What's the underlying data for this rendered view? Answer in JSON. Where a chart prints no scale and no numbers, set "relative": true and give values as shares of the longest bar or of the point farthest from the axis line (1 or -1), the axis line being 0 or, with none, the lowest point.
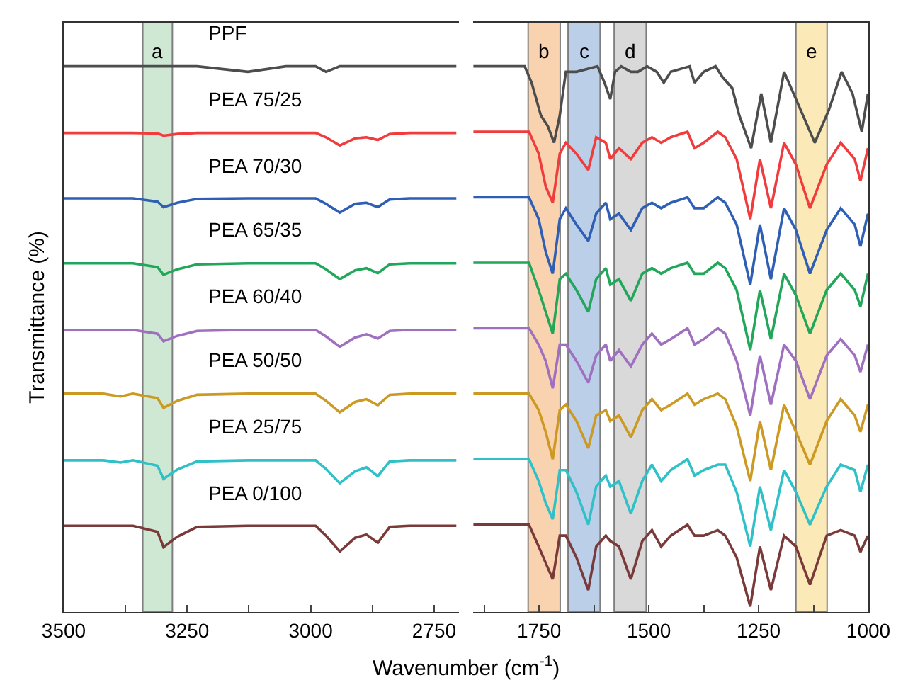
{
  "chart_data": [
    {
      "type": "line",
      "relative": true,
      "xlabel": "Wavenumber (cm$^{-1}$)",
      "ylabel": "Transmittance (%)",
      "tick_labels": "x",
      "legend": false,
      "grid": false,
      "xlim": [
        3500,
        2700
      ],
      "xticks": [
        3500,
        {
          "value": 3375,
          "label": null
        },
        3250,
        {
          "value": 3125,
          "label": null
        },
        3000,
        {
          "value": 2875,
          "label": null
        },
        2750
      ],
      "x": [
        3500,
        3420,
        3385,
        3360,
        3310,
        3298,
        3270,
        3230,
        3127,
        3050,
        2990,
        2969,
        2941,
        2910,
        2887,
        2864,
        2840,
        2800,
        2705
      ],
      "bands": [
        {
          "axis": "x",
          "from": 3340,
          "to": 3280,
          "label": "a",
          "color": "#cfe8d3"
        }
      ],
      "series": [
        {
          "name": "PPF",
          "color": "#4d4d4d",
          "values": [
            1.0,
            1.0,
            1.0,
            1.0,
            1.0,
            1.0,
            1.0,
            1.0,
            0.99,
            1.0,
            1.0,
            0.99,
            1.0,
            1.0,
            1.0,
            1.0,
            1.0,
            1.0,
            1.0
          ]
        },
        {
          "name": "PEA 75/25",
          "color": "#f03c3c",
          "values": [
            0.878,
            0.878,
            0.878,
            0.878,
            0.877,
            0.873,
            0.876,
            0.878,
            0.878,
            0.878,
            0.878,
            0.87,
            0.855,
            0.868,
            0.87,
            0.865,
            0.876,
            0.878,
            0.878
          ]
        },
        {
          "name": "PEA 70/30",
          "color": "#2e5fb5",
          "values": [
            0.758,
            0.758,
            0.758,
            0.758,
            0.752,
            0.742,
            0.75,
            0.757,
            0.758,
            0.758,
            0.758,
            0.748,
            0.732,
            0.748,
            0.75,
            0.742,
            0.756,
            0.758,
            0.758
          ]
        },
        {
          "name": "PEA 65/35",
          "color": "#22a65a",
          "values": [
            0.639,
            0.639,
            0.639,
            0.639,
            0.632,
            0.618,
            0.628,
            0.637,
            0.639,
            0.639,
            0.639,
            0.628,
            0.61,
            0.626,
            0.63,
            0.621,
            0.637,
            0.639,
            0.639
          ]
        },
        {
          "name": "PEA 60/40",
          "color": "#a070c0",
          "values": [
            0.517,
            0.517,
            0.517,
            0.517,
            0.51,
            0.496,
            0.506,
            0.515,
            0.517,
            0.517,
            0.517,
            0.505,
            0.486,
            0.503,
            0.509,
            0.501,
            0.515,
            0.517,
            0.517
          ]
        },
        {
          "name": "PEA 50/50",
          "color": "#cc9a22",
          "values": [
            0.4,
            0.4,
            0.395,
            0.4,
            0.392,
            0.374,
            0.387,
            0.398,
            0.4,
            0.4,
            0.4,
            0.387,
            0.366,
            0.385,
            0.39,
            0.379,
            0.398,
            0.4,
            0.4
          ]
        },
        {
          "name": "PEA 25/75",
          "color": "#30c0c8",
          "values": [
            0.278,
            0.278,
            0.274,
            0.278,
            0.268,
            0.244,
            0.261,
            0.276,
            0.278,
            0.278,
            0.278,
            0.262,
            0.236,
            0.258,
            0.265,
            0.249,
            0.276,
            0.278,
            0.278
          ]
        },
        {
          "name": "PEA 0/100",
          "color": "#7a3a3a",
          "values": [
            0.158,
            0.158,
            0.158,
            0.158,
            0.147,
            0.119,
            0.138,
            0.156,
            0.158,
            0.158,
            0.158,
            0.14,
            0.111,
            0.136,
            0.142,
            0.127,
            0.156,
            0.158,
            0.158
          ]
        }
      ]
    },
    {
      "type": "line",
      "relative": true,
      "tick_labels": "x",
      "legend": false,
      "grid": false,
      "xlim": [
        1900,
        1000
      ],
      "xticks": [
        {
          "value": 1875,
          "label": null
        },
        1750,
        {
          "value": 1625,
          "label": null
        },
        1500,
        {
          "value": 1375,
          "label": null
        },
        1250,
        {
          "value": 1125,
          "label": null
        },
        1000
      ],
      "x": [
        1900,
        1773,
        1751,
        1735,
        1719,
        1703,
        1689,
        1665,
        1638,
        1620,
        1598,
        1588,
        1568,
        1541,
        1515,
        1493,
        1472,
        1450,
        1412,
        1396,
        1375,
        1343,
        1326,
        1300,
        1269,
        1247,
        1222,
        1192,
        1165,
        1133,
        1095,
        1063,
        1031,
        1018,
        1001
      ],
      "bands": [
        {
          "axis": "x",
          "from": 1775,
          "to": 1702,
          "label": "b",
          "color": "#f9d2b0"
        },
        {
          "axis": "x",
          "from": 1684,
          "to": 1611,
          "label": "c",
          "color": "#bccfe8"
        },
        {
          "axis": "x",
          "from": 1579,
          "to": 1506,
          "label": "d",
          "color": "#d9d9d9"
        },
        {
          "axis": "x",
          "from": 1165,
          "to": 1094,
          "label": "e",
          "color": "#fbeab8"
        }
      ],
      "series": [
        {
          "color": "#4d4d4d",
          "x": [
            1900,
            1783,
            1767,
            1746,
            1730,
            1716,
            1703,
            1689,
            1665,
            1617,
            1601,
            1588,
            1577,
            1563,
            1541,
            1525,
            1504,
            1482,
            1466,
            1450,
            1407,
            1396,
            1375,
            1348,
            1332,
            1310,
            1294,
            1267,
            1244,
            1222,
            1192,
            1165,
            1122,
            1090,
            1061,
            1036,
            1015,
            1001
          ],
          "values": [
            1.0,
            1.0,
            0.97,
            0.91,
            0.89,
            0.86,
            0.91,
            0.99,
            0.99,
            1.0,
            0.97,
            0.94,
            0.99,
            1.0,
            0.99,
            0.99,
            1.0,
            0.99,
            0.97,
            0.99,
            1.0,
            0.97,
            0.99,
            1.0,
            0.98,
            0.96,
            0.91,
            0.85,
            0.95,
            0.86,
            0.99,
            0.94,
            0.86,
            0.92,
            0.99,
            0.95,
            0.88,
            0.95
          ]
        },
        {
          "color": "#f03c3c",
          "values": [
            0.88,
            0.88,
            0.84,
            0.78,
            0.75,
            0.84,
            0.86,
            0.84,
            0.81,
            0.87,
            0.86,
            0.83,
            0.85,
            0.83,
            0.86,
            0.87,
            0.86,
            0.87,
            0.88,
            0.85,
            0.86,
            0.88,
            0.87,
            0.83,
            0.72,
            0.83,
            0.74,
            0.86,
            0.82,
            0.74,
            0.82,
            0.86,
            0.83,
            0.79,
            0.85
          ]
        },
        {
          "color": "#2e5fb5",
          "values": [
            0.76,
            0.76,
            0.72,
            0.66,
            0.62,
            0.72,
            0.74,
            0.71,
            0.68,
            0.73,
            0.75,
            0.72,
            0.73,
            0.7,
            0.74,
            0.75,
            0.74,
            0.75,
            0.76,
            0.74,
            0.74,
            0.76,
            0.75,
            0.71,
            0.6,
            0.71,
            0.61,
            0.74,
            0.7,
            0.62,
            0.7,
            0.74,
            0.71,
            0.67,
            0.73
          ]
        },
        {
          "color": "#22a65a",
          "values": [
            0.64,
            0.64,
            0.59,
            0.55,
            0.51,
            0.61,
            0.62,
            0.59,
            0.55,
            0.61,
            0.63,
            0.6,
            0.61,
            0.57,
            0.62,
            0.63,
            0.62,
            0.63,
            0.64,
            0.62,
            0.62,
            0.64,
            0.63,
            0.59,
            0.48,
            0.59,
            0.5,
            0.62,
            0.58,
            0.51,
            0.59,
            0.62,
            0.59,
            0.56,
            0.62
          ]
        },
        {
          "color": "#a070c0",
          "values": [
            0.52,
            0.52,
            0.49,
            0.46,
            0.41,
            0.49,
            0.49,
            0.46,
            0.42,
            0.47,
            0.49,
            0.46,
            0.48,
            0.45,
            0.49,
            0.51,
            0.49,
            0.5,
            0.52,
            0.49,
            0.5,
            0.52,
            0.51,
            0.46,
            0.36,
            0.47,
            0.38,
            0.49,
            0.46,
            0.39,
            0.47,
            0.5,
            0.47,
            0.44,
            0.49
          ]
        },
        {
          "color": "#cc9a22",
          "values": [
            0.4,
            0.4,
            0.37,
            0.33,
            0.28,
            0.37,
            0.38,
            0.35,
            0.3,
            0.36,
            0.37,
            0.35,
            0.36,
            0.32,
            0.37,
            0.39,
            0.37,
            0.38,
            0.4,
            0.38,
            0.39,
            0.4,
            0.39,
            0.34,
            0.24,
            0.35,
            0.26,
            0.38,
            0.33,
            0.27,
            0.35,
            0.39,
            0.36,
            0.33,
            0.38
          ]
        },
        {
          "color": "#30c0c8",
          "values": [
            0.28,
            0.28,
            0.24,
            0.2,
            0.17,
            0.26,
            0.26,
            0.22,
            0.16,
            0.23,
            0.25,
            0.23,
            0.24,
            0.18,
            0.24,
            0.27,
            0.24,
            0.26,
            0.28,
            0.25,
            0.26,
            0.27,
            0.27,
            0.22,
            0.12,
            0.23,
            0.15,
            0.26,
            0.22,
            0.16,
            0.23,
            0.27,
            0.26,
            0.22,
            0.27
          ]
        },
        {
          "color": "#7a3a3a",
          "values": [
            0.16,
            0.16,
            0.12,
            0.09,
            0.06,
            0.14,
            0.14,
            0.1,
            0.04,
            0.12,
            0.14,
            0.13,
            0.12,
            0.06,
            0.13,
            0.15,
            0.12,
            0.14,
            0.16,
            0.14,
            0.14,
            0.15,
            0.14,
            0.1,
            0.01,
            0.12,
            0.04,
            0.14,
            0.12,
            0.05,
            0.14,
            0.15,
            0.14,
            0.11,
            0.14
          ]
        }
      ]
    }
  ]
}
